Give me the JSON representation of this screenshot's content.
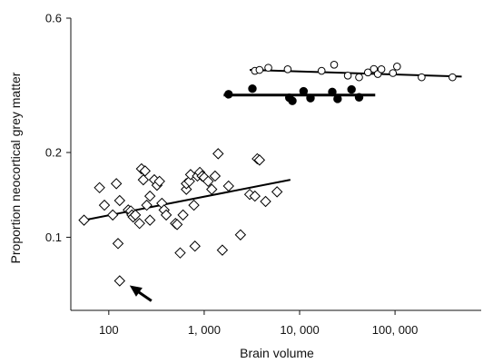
{
  "chart_data": {
    "type": "scatter",
    "xlabel": "Brain volume",
    "ylabel": "Proportion neocortical grey matter",
    "x_scale": "log",
    "y_scale": "log",
    "xlim": [
      40,
      800000
    ],
    "ylim": [
      0.055,
      0.6
    ],
    "x_ticks": [
      {
        "value": 100,
        "label": "100"
      },
      {
        "value": 1000,
        "label": "1, 000"
      },
      {
        "value": 10000,
        "label": "10, 000"
      },
      {
        "value": 100000,
        "label": "100, 000"
      }
    ],
    "y_ticks": [
      {
        "value": 0.1,
        "label": "0.1"
      },
      {
        "value": 0.2,
        "label": "0.2"
      },
      {
        "value": 0.6,
        "label": "0.6"
      }
    ],
    "grid": false,
    "colors": {
      "points": "#000000",
      "line": "#000000"
    },
    "series": [
      {
        "marker": "diamond-open",
        "points": [
          [
            55,
            0.115
          ],
          [
            80,
            0.15
          ],
          [
            90,
            0.13
          ],
          [
            110,
            0.12
          ],
          [
            120,
            0.155
          ],
          [
            125,
            0.095
          ],
          [
            130,
            0.135
          ],
          [
            160,
            0.125
          ],
          [
            170,
            0.124
          ],
          [
            175,
            0.12
          ],
          [
            180,
            0.118
          ],
          [
            190,
            0.12
          ],
          [
            210,
            0.112
          ],
          [
            220,
            0.175
          ],
          [
            230,
            0.16
          ],
          [
            240,
            0.172
          ],
          [
            250,
            0.13
          ],
          [
            270,
            0.14
          ],
          [
            270,
            0.115
          ],
          [
            300,
            0.16
          ],
          [
            320,
            0.153
          ],
          [
            340,
            0.158
          ],
          [
            360,
            0.132
          ],
          [
            380,
            0.125
          ],
          [
            400,
            0.12
          ],
          [
            500,
            0.112
          ],
          [
            520,
            0.111
          ],
          [
            560,
            0.088
          ],
          [
            600,
            0.12
          ],
          [
            650,
            0.148
          ],
          [
            650,
            0.155
          ],
          [
            700,
            0.158
          ],
          [
            720,
            0.167
          ],
          [
            780,
            0.13
          ],
          [
            800,
            0.093
          ],
          [
            850,
            0.165
          ],
          [
            900,
            0.17
          ],
          [
            950,
            0.165
          ],
          [
            1000,
            0.163
          ],
          [
            1100,
            0.158
          ],
          [
            1200,
            0.148
          ],
          [
            1300,
            0.165
          ],
          [
            1400,
            0.198
          ],
          [
            1550,
            0.09
          ],
          [
            1800,
            0.152
          ],
          [
            2400,
            0.102
          ],
          [
            3000,
            0.142
          ],
          [
            3400,
            0.14
          ],
          [
            3600,
            0.19
          ],
          [
            3800,
            0.188
          ],
          [
            4400,
            0.134
          ],
          [
            5800,
            0.145
          ]
        ],
        "fit": {
          "x": [
            55,
            8000
          ],
          "y": [
            0.115,
            0.16
          ]
        }
      },
      {
        "marker": "circle-filled",
        "points": [
          [
            1800,
            0.322
          ],
          [
            3200,
            0.337
          ],
          [
            7800,
            0.313
          ],
          [
            8400,
            0.305
          ],
          [
            11000,
            0.33
          ],
          [
            13000,
            0.312
          ],
          [
            22000,
            0.328
          ],
          [
            25000,
            0.31
          ],
          [
            35000,
            0.335
          ],
          [
            42000,
            0.314
          ]
        ],
        "fit": {
          "x": [
            1600,
            62000
          ],
          "y": [
            0.32,
            0.32
          ]
        }
      },
      {
        "marker": "circle-open",
        "points": [
          [
            3400,
            0.39
          ],
          [
            3800,
            0.393
          ],
          [
            4700,
            0.4
          ],
          [
            7500,
            0.395
          ],
          [
            17000,
            0.39
          ],
          [
            23000,
            0.41
          ],
          [
            32000,
            0.375
          ],
          [
            42000,
            0.37
          ],
          [
            52000,
            0.385
          ],
          [
            60000,
            0.396
          ],
          [
            66000,
            0.38
          ],
          [
            72000,
            0.395
          ],
          [
            95000,
            0.383
          ],
          [
            105000,
            0.404
          ],
          [
            190000,
            0.37
          ],
          [
            400000,
            0.37
          ]
        ],
        "fit": {
          "x": [
            3000,
            500000
          ],
          "y": [
            0.393,
            0.372
          ]
        }
      }
    ],
    "annotations": [
      {
        "type": "arrow",
        "pointing_to": [
          130,
          0.07
        ]
      }
    ],
    "outlier": {
      "marker": "diamond-open",
      "point": [
        130,
        0.07
      ]
    }
  }
}
